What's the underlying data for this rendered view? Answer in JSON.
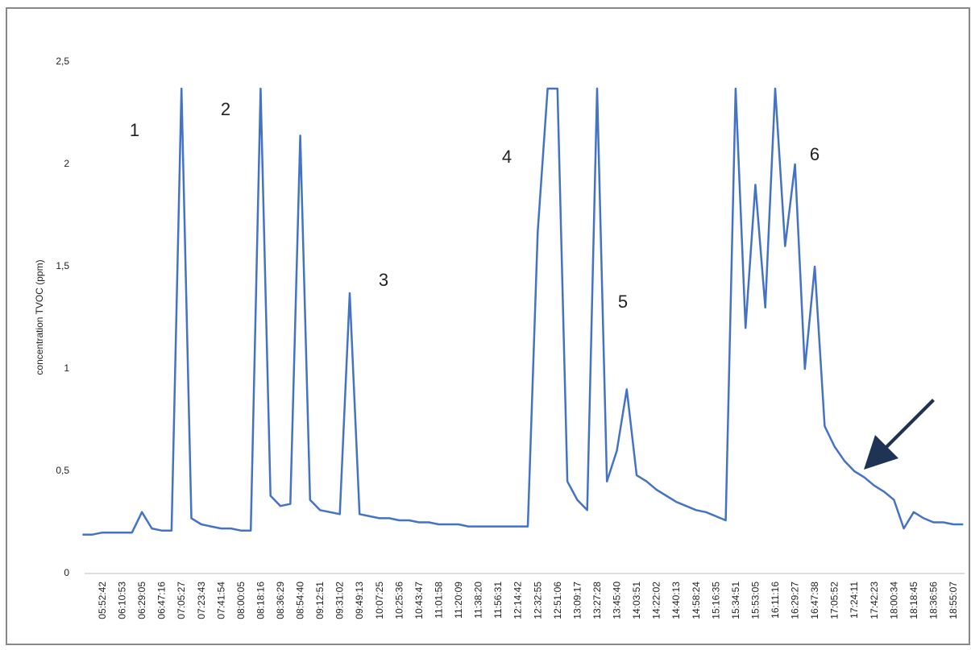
{
  "chart_data": {
    "type": "line",
    "y_label": "concentration TVOC (ppm)",
    "annotations": [
      "1",
      "2",
      "3",
      "4",
      "5",
      "6"
    ],
    "categories": [
      null,
      null,
      "05:52:42",
      null,
      "06:10:53",
      null,
      "06:29:05",
      null,
      "06:47:16",
      null,
      "07:05:27",
      null,
      "07:23:43",
      null,
      "07:41:54",
      null,
      "08:00:05",
      null,
      "08:18:16",
      null,
      "08:36:29",
      null,
      "08:54:40",
      null,
      "09:12:51",
      null,
      "09:31:02",
      null,
      "09:49:13",
      null,
      "10:07:25",
      null,
      "10:25:36",
      null,
      "10:43:47",
      null,
      "11:01:58",
      null,
      "11:20:09",
      null,
      "11:38:20",
      null,
      "11:56:31",
      null,
      "12:14:42",
      null,
      "12:32:55",
      null,
      "12:51:06",
      null,
      "13:09:17",
      null,
      "13:27:28",
      null,
      "13:45:40",
      null,
      "14:03:51",
      null,
      "14:22:02",
      null,
      "14:40:13",
      null,
      "14:58:24",
      null,
      "15:16:35",
      null,
      "15:34:51",
      null,
      "15:53:05",
      null,
      "16:11:16",
      null,
      "16:29:27",
      null,
      "16:47:38",
      null,
      "17:05:52",
      null,
      "17:24:11",
      null,
      "17:42:23",
      null,
      "18:00:34",
      null,
      "18:18:45",
      null,
      "18:36:56",
      null,
      "18:55:07",
      null
    ],
    "series": [
      {
        "color": "#4472c4",
        "values": [
          0.19,
          0.19,
          0.2,
          0.2,
          0.2,
          0.2,
          0.3,
          0.22,
          0.21,
          0.21,
          2.37,
          0.27,
          0.24,
          0.23,
          0.22,
          0.22,
          0.21,
          0.21,
          2.37,
          0.38,
          0.33,
          0.34,
          2.14,
          0.36,
          0.31,
          0.3,
          0.29,
          1.37,
          0.29,
          0.28,
          0.27,
          0.27,
          0.26,
          0.26,
          0.25,
          0.25,
          0.24,
          0.24,
          0.24,
          0.23,
          0.23,
          0.23,
          0.23,
          0.23,
          0.23,
          0.23,
          1.67,
          2.37,
          2.37,
          0.45,
          0.36,
          0.31,
          2.37,
          0.45,
          0.6,
          0.9,
          0.48,
          0.45,
          0.41,
          0.38,
          0.35,
          0.33,
          0.31,
          0.3,
          0.28,
          0.26,
          2.37,
          1.2,
          1.9,
          1.3,
          2.37,
          1.6,
          2.0,
          1.0,
          1.5,
          0.72,
          0.62,
          0.55,
          0.5,
          0.47,
          0.43,
          0.4,
          0.36,
          0.22,
          0.3,
          0.27,
          0.25,
          0.25,
          0.24,
          0.24
        ]
      }
    ],
    "ylim": [
      0,
      2.5
    ],
    "yticks": [
      0,
      {
        "value": 0.5,
        "label": "0,5"
      },
      1,
      {
        "value": 1.5,
        "label": "1,5"
      },
      2,
      {
        "value": 2.5,
        "label": "2,5"
      }
    ],
    "grid": false
  }
}
